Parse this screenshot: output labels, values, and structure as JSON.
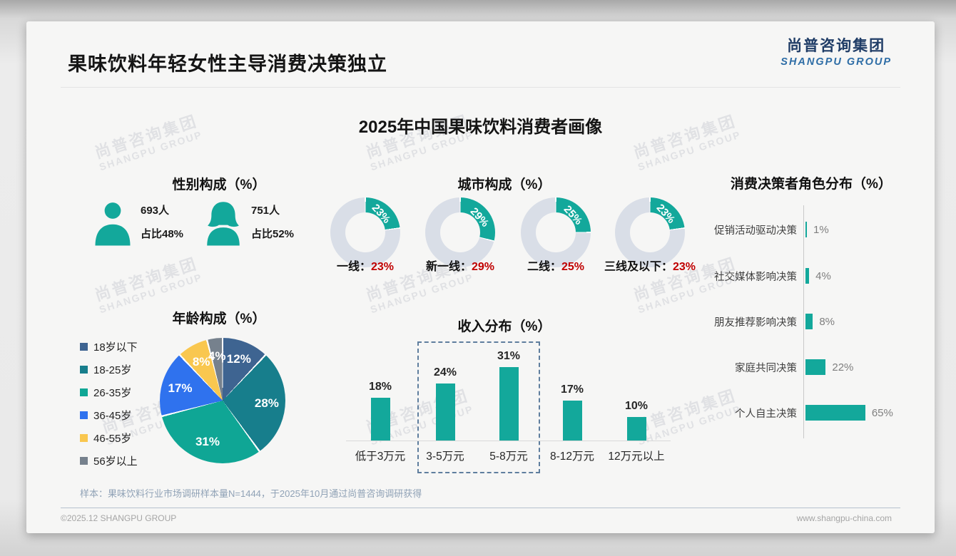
{
  "slide": {
    "title": "果味饮料年轻女性主导消费决策独立",
    "main_title": "2025年中国果味饮料消费者画像",
    "logo": {
      "zh": "尚普咨询集团",
      "en": "SHANGPU GROUP"
    },
    "watermark": {
      "zh": "尚普咨询集团",
      "en": "SHANGPU GROUP"
    },
    "sample_note": "样本：果味饮料行业市场调研样本量N=1444，于2025年10月通过尚普咨询调研获得",
    "footer": {
      "left": "©2025.12 SHANGPU GROUP",
      "right": "www.shangpu-china.com"
    }
  },
  "colors": {
    "teal": "#13a89b",
    "donut_track": "#d9dee7",
    "red": "#c00000",
    "logo_navy": "#1f3c66",
    "logo_blue": "#2e6da6",
    "dashed_box": "#5f7e9e"
  },
  "chart_data": [
    {
      "id": "gender",
      "type": "pictogram",
      "title": "性别构成（%）",
      "items": [
        {
          "icon": "male-silhouette",
          "count": "693人",
          "share": "占比48%",
          "value": 48
        },
        {
          "icon": "female-silhouette",
          "count": "751人",
          "share": "占比52%",
          "value": 52
        }
      ]
    },
    {
      "id": "city",
      "type": "donut",
      "title": "城市构成（%）",
      "accent": "#13a89b",
      "track": "#d9dee7",
      "items": [
        {
          "label": "一线：",
          "value": 23,
          "value_display": "23%"
        },
        {
          "label": "新一线：",
          "value": 29,
          "value_display": "29%"
        },
        {
          "label": "二线：",
          "value": 25,
          "value_display": "25%"
        },
        {
          "label": "三线及以下：",
          "value": 23,
          "value_display": "23%"
        }
      ]
    },
    {
      "id": "age",
      "type": "pie",
      "title": "年龄构成（%）",
      "categories": [
        "18岁以下",
        "18-25岁",
        "26-35岁",
        "36-45岁",
        "46-55岁",
        "56岁以上"
      ],
      "values": [
        12,
        28,
        31,
        17,
        8,
        4
      ],
      "labels": [
        "12%",
        "28%",
        "31%",
        "17%",
        "8%",
        "4%"
      ],
      "colors": [
        "#3e6491",
        "#177e8c",
        "#0fa695",
        "#2f72ee",
        "#f9c74f",
        "#76818d"
      ],
      "legend_position": "left"
    },
    {
      "id": "income",
      "type": "bar",
      "title": "收入分布（%）",
      "categories": [
        "低于3万元",
        "3-5万元",
        "5-8万元",
        "8-12万元",
        "12万元以上"
      ],
      "values": [
        18,
        24,
        31,
        17,
        10
      ],
      "labels": [
        "18%",
        "24%",
        "31%",
        "17%",
        "10%"
      ],
      "bar_color": "#13a89b",
      "ylim": [
        0,
        35
      ],
      "highlight": {
        "categories": [
          "3-5万元",
          "5-8万元"
        ],
        "style": "dashed-box"
      }
    },
    {
      "id": "decision",
      "type": "hbar",
      "title": "消费决策者角色分布（%）",
      "categories": [
        "促销活动驱动决策",
        "社交媒体影响决策",
        "朋友推荐影响决策",
        "家庭共同决策",
        "个人自主决策"
      ],
      "values": [
        1,
        4,
        8,
        22,
        65
      ],
      "labels": [
        "1%",
        "4%",
        "8%",
        "22%",
        "65%"
      ],
      "bar_color": "#13a89b",
      "xlim": [
        0,
        70
      ]
    }
  ]
}
